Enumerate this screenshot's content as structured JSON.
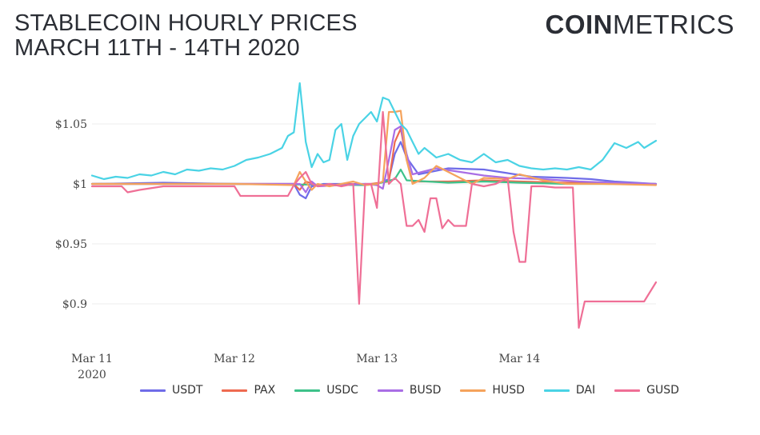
{
  "header": {
    "title_line1": "STABLECOIN HOURLY PRICES",
    "title_line2": "MARCH 11TH - 14TH 2020"
  },
  "brand": {
    "part1": "COIN",
    "part2": "METRICS"
  },
  "chart_data": {
    "type": "line",
    "title": "STABLECOIN HOURLY PRICES MARCH 11TH - 14TH 2020",
    "xlabel": "",
    "ylabel": "",
    "xlim": [
      0,
      95
    ],
    "ylim": [
      0.87,
      1.09
    ],
    "x_unit": "hours since Mar 11 2020 00:00",
    "y_ticks": [
      {
        "value": 0.9,
        "label": "$0.9"
      },
      {
        "value": 0.95,
        "label": "$0.95"
      },
      {
        "value": 1.0,
        "label": "$1"
      },
      {
        "value": 1.05,
        "label": "$1.05"
      }
    ],
    "x_ticks": [
      {
        "value": 0,
        "label": "Mar 11",
        "sub": "2020"
      },
      {
        "value": 24,
        "label": "Mar 12",
        "sub": ""
      },
      {
        "value": 48,
        "label": "Mar 13",
        "sub": ""
      },
      {
        "value": 72,
        "label": "Mar 14",
        "sub": ""
      }
    ],
    "grid": true,
    "legend_position": "bottom",
    "series": [
      {
        "name": "USDT",
        "color": "#6f6ce8",
        "points": [
          [
            0,
            1.0
          ],
          [
            12,
            1.001
          ],
          [
            24,
            1.0
          ],
          [
            34,
            1.0
          ],
          [
            35,
            0.991
          ],
          [
            36,
            0.988
          ],
          [
            37,
            0.998
          ],
          [
            39,
            1.0
          ],
          [
            48,
            1.0
          ],
          [
            50,
            1.004
          ],
          [
            51,
            1.025
          ],
          [
            52,
            1.035
          ],
          [
            53,
            1.022
          ],
          [
            55,
            1.008
          ],
          [
            60,
            1.013
          ],
          [
            66,
            1.012
          ],
          [
            70,
            1.009
          ],
          [
            74,
            1.006
          ],
          [
            80,
            1.005
          ],
          [
            84,
            1.004
          ],
          [
            88,
            1.002
          ],
          [
            95,
            1.0
          ]
        ]
      },
      {
        "name": "PAX",
        "color": "#ee6a50",
        "points": [
          [
            0,
            1.0
          ],
          [
            24,
            1.0
          ],
          [
            34,
            1.0
          ],
          [
            35,
            0.995
          ],
          [
            36,
            1.002
          ],
          [
            38,
            0.999
          ],
          [
            47,
            1.0
          ],
          [
            50,
            1.002
          ],
          [
            51,
            1.035
          ],
          [
            52,
            1.046
          ],
          [
            53,
            1.02
          ],
          [
            54,
            1.002
          ],
          [
            60,
            1.002
          ],
          [
            66,
            1.003
          ],
          [
            72,
            1.002
          ],
          [
            80,
            1.001
          ],
          [
            95,
            1.0
          ]
        ]
      },
      {
        "name": "USDC",
        "color": "#3ec28a",
        "points": [
          [
            0,
            1.0
          ],
          [
            24,
            1.0
          ],
          [
            46,
            0.999
          ],
          [
            48,
            1.0
          ],
          [
            51,
            1.004
          ],
          [
            52,
            1.012
          ],
          [
            53,
            1.003
          ],
          [
            60,
            1.001
          ],
          [
            66,
            1.002
          ],
          [
            72,
            1.001
          ],
          [
            80,
            1.0
          ],
          [
            95,
            1.0
          ]
        ]
      },
      {
        "name": "BUSD",
        "color": "#a96ee5",
        "points": [
          [
            0,
            1.0
          ],
          [
            24,
            1.0
          ],
          [
            35,
            1.0
          ],
          [
            36,
            0.993
          ],
          [
            37,
            1.002
          ],
          [
            38,
            0.998
          ],
          [
            46,
            1.0
          ],
          [
            48,
            0.999
          ],
          [
            49,
            0.996
          ],
          [
            50,
            1.02
          ],
          [
            51,
            1.045
          ],
          [
            52,
            1.048
          ],
          [
            53,
            1.025
          ],
          [
            54,
            1.008
          ],
          [
            58,
            1.013
          ],
          [
            62,
            1.01
          ],
          [
            66,
            1.007
          ],
          [
            70,
            1.005
          ],
          [
            76,
            1.004
          ],
          [
            82,
            1.002
          ],
          [
            88,
            1.001
          ],
          [
            95,
            1.0
          ]
        ]
      },
      {
        "name": "HUSD",
        "color": "#f5a35c",
        "points": [
          [
            0,
            1.0
          ],
          [
            24,
            1.0
          ],
          [
            34,
            0.999
          ],
          [
            35,
            1.01
          ],
          [
            36,
            1.002
          ],
          [
            37,
            0.995
          ],
          [
            38,
            1.0
          ],
          [
            40,
            0.998
          ],
          [
            44,
            1.002
          ],
          [
            46,
            0.999
          ],
          [
            48,
            1.0
          ],
          [
            49,
            1.002
          ],
          [
            50,
            1.06
          ],
          [
            51,
            1.06
          ],
          [
            52,
            1.061
          ],
          [
            53,
            1.02
          ],
          [
            54,
            1.0
          ],
          [
            56,
            1.005
          ],
          [
            58,
            1.015
          ],
          [
            60,
            1.01
          ],
          [
            64,
            1.0
          ],
          [
            66,
            1.005
          ],
          [
            70,
            1.004
          ],
          [
            72,
            1.008
          ],
          [
            76,
            1.003
          ],
          [
            80,
            1.0
          ],
          [
            86,
            1.0
          ],
          [
            95,
            0.999
          ]
        ]
      },
      {
        "name": "DAI",
        "color": "#4ad3e5",
        "points": [
          [
            0,
            1.007
          ],
          [
            2,
            1.004
          ],
          [
            4,
            1.006
          ],
          [
            6,
            1.005
          ],
          [
            8,
            1.008
          ],
          [
            10,
            1.007
          ],
          [
            12,
            1.01
          ],
          [
            14,
            1.008
          ],
          [
            16,
            1.012
          ],
          [
            18,
            1.011
          ],
          [
            20,
            1.013
          ],
          [
            22,
            1.012
          ],
          [
            24,
            1.015
          ],
          [
            26,
            1.02
          ],
          [
            28,
            1.022
          ],
          [
            30,
            1.025
          ],
          [
            32,
            1.03
          ],
          [
            33,
            1.04
          ],
          [
            34,
            1.043
          ],
          [
            35,
            1.084
          ],
          [
            36,
            1.035
          ],
          [
            37,
            1.014
          ],
          [
            38,
            1.025
          ],
          [
            39,
            1.018
          ],
          [
            40,
            1.02
          ],
          [
            41,
            1.045
          ],
          [
            42,
            1.05
          ],
          [
            43,
            1.02
          ],
          [
            44,
            1.04
          ],
          [
            45,
            1.05
          ],
          [
            46,
            1.055
          ],
          [
            47,
            1.06
          ],
          [
            48,
            1.052
          ],
          [
            49,
            1.072
          ],
          [
            50,
            1.07
          ],
          [
            51,
            1.06
          ],
          [
            52,
            1.05
          ],
          [
            53,
            1.045
          ],
          [
            54,
            1.035
          ],
          [
            55,
            1.025
          ],
          [
            56,
            1.03
          ],
          [
            58,
            1.022
          ],
          [
            60,
            1.025
          ],
          [
            62,
            1.02
          ],
          [
            64,
            1.018
          ],
          [
            66,
            1.025
          ],
          [
            68,
            1.018
          ],
          [
            70,
            1.02
          ],
          [
            72,
            1.015
          ],
          [
            74,
            1.013
          ],
          [
            76,
            1.012
          ],
          [
            78,
            1.013
          ],
          [
            80,
            1.012
          ],
          [
            82,
            1.014
          ],
          [
            84,
            1.012
          ],
          [
            86,
            1.02
          ],
          [
            88,
            1.034
          ],
          [
            90,
            1.03
          ],
          [
            92,
            1.035
          ],
          [
            93,
            1.03
          ],
          [
            95,
            1.036
          ]
        ]
      },
      {
        "name": "GUSD",
        "color": "#ef6f96",
        "points": [
          [
            0,
            0.998
          ],
          [
            5,
            0.998
          ],
          [
            6,
            0.993
          ],
          [
            8,
            0.995
          ],
          [
            12,
            0.998
          ],
          [
            24,
            0.998
          ],
          [
            25,
            0.99
          ],
          [
            30,
            0.99
          ],
          [
            33,
            0.99
          ],
          [
            34,
            0.999
          ],
          [
            35,
            1.005
          ],
          [
            36,
            1.01
          ],
          [
            37,
            1.0
          ],
          [
            38,
            0.998
          ],
          [
            40,
            1.0
          ],
          [
            42,
            0.998
          ],
          [
            44,
            1.0
          ],
          [
            45,
            0.9
          ],
          [
            46,
            1.0
          ],
          [
            47,
            1.0
          ],
          [
            48,
            0.98
          ],
          [
            49,
            1.06
          ],
          [
            50,
            1.0
          ],
          [
            51,
            1.005
          ],
          [
            52,
            1.0
          ],
          [
            53,
            0.965
          ],
          [
            54,
            0.965
          ],
          [
            55,
            0.97
          ],
          [
            56,
            0.96
          ],
          [
            57,
            0.988
          ],
          [
            58,
            0.988
          ],
          [
            59,
            0.963
          ],
          [
            60,
            0.97
          ],
          [
            61,
            0.965
          ],
          [
            63,
            0.965
          ],
          [
            64,
            1.0
          ],
          [
            66,
            0.998
          ],
          [
            68,
            1.0
          ],
          [
            70,
            1.005
          ],
          [
            71,
            0.96
          ],
          [
            72,
            0.935
          ],
          [
            73,
            0.935
          ],
          [
            74,
            0.998
          ],
          [
            76,
            0.998
          ],
          [
            78,
            0.997
          ],
          [
            81,
            0.997
          ],
          [
            82,
            0.88
          ],
          [
            83,
            0.902
          ],
          [
            86,
            0.902
          ],
          [
            93,
            0.902
          ],
          [
            95,
            0.918
          ]
        ]
      }
    ]
  }
}
